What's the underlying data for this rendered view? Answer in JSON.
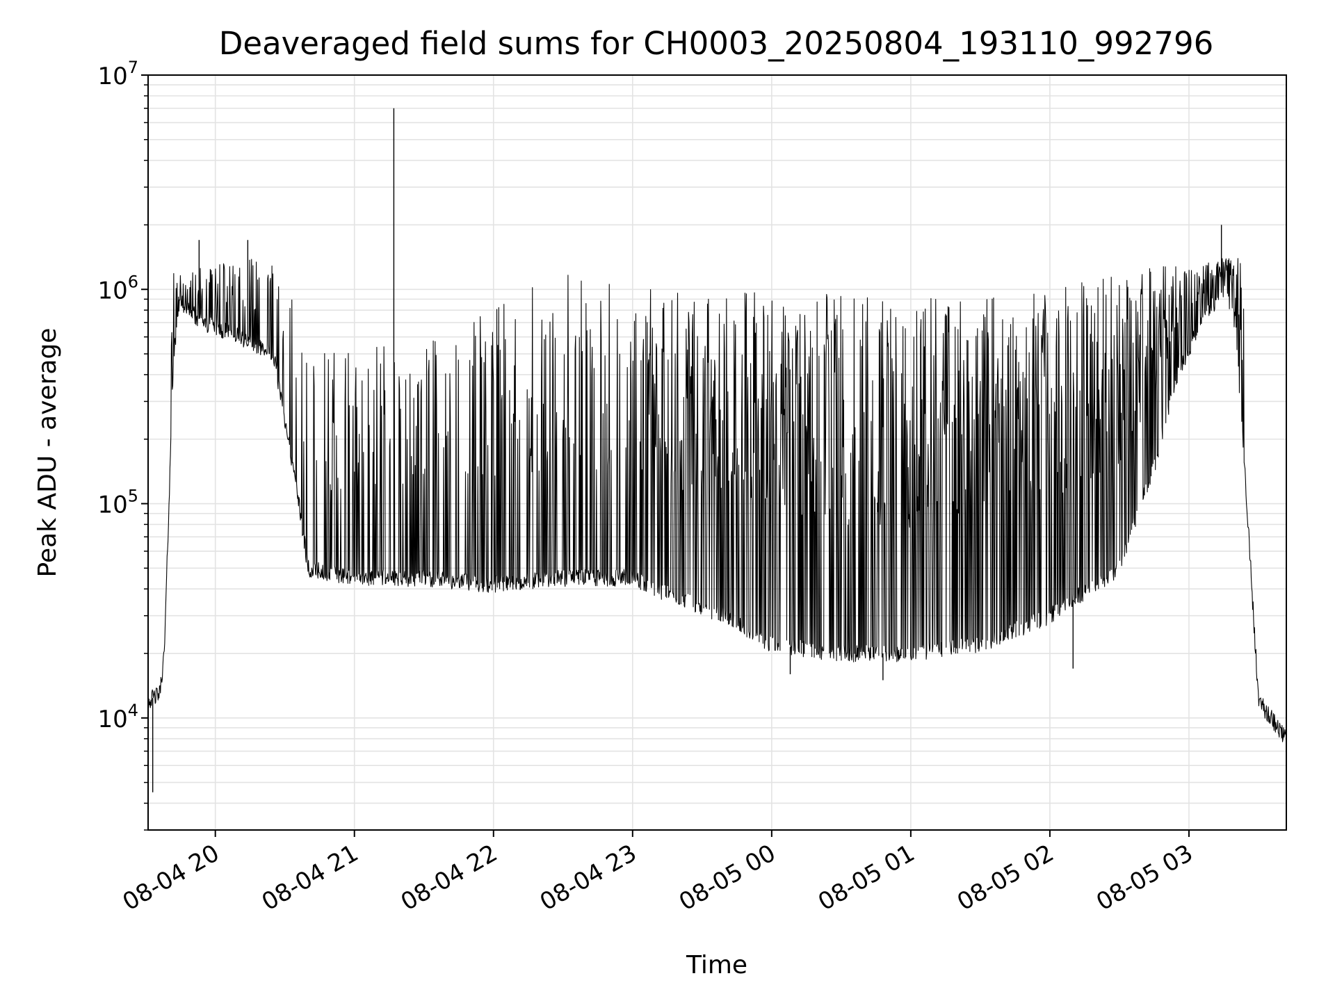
{
  "chart_data": {
    "type": "line",
    "title": "Deaveraged field sums for CH0003_20250804_193110_992796",
    "xlabel": "Time",
    "ylabel": "Peak ADU - average",
    "yscale": "log",
    "ylim": [
      3000,
      10000000
    ],
    "xlim": [
      "2025-08-04 19:31",
      "2025-08-05 03:42"
    ],
    "grid": true,
    "line_color": "#000000",
    "grid_color": "#e3e3e3",
    "x_ticks": [
      {
        "value": "2025-08-04 20:00",
        "label": "08-04 20"
      },
      {
        "value": "2025-08-04 21:00",
        "label": "08-04 21"
      },
      {
        "value": "2025-08-04 22:00",
        "label": "08-04 22"
      },
      {
        "value": "2025-08-04 23:00",
        "label": "08-04 23"
      },
      {
        "value": "2025-08-05 00:00",
        "label": "08-05 00"
      },
      {
        "value": "2025-08-05 01:00",
        "label": "08-05 01"
      },
      {
        "value": "2025-08-05 02:00",
        "label": "08-05 02"
      },
      {
        "value": "2025-08-05 03:00",
        "label": "08-05 03"
      }
    ],
    "y_ticks": [
      {
        "value": 10000,
        "base": "10",
        "exp": "4"
      },
      {
        "value": 100000,
        "base": "10",
        "exp": "5"
      },
      {
        "value": 1000000,
        "base": "10",
        "exp": "6"
      },
      {
        "value": 10000000,
        "base": "10",
        "exp": "7"
      }
    ],
    "series": [
      {
        "baseline": [
          [
            "2025-08-04 19:31",
            12000
          ],
          [
            "2025-08-04 19:36",
            13000
          ],
          [
            "2025-08-04 19:38",
            20000
          ],
          [
            "2025-08-04 19:40",
            100000
          ],
          [
            "2025-08-04 19:42",
            500000
          ],
          [
            "2025-08-04 19:45",
            900000
          ],
          [
            "2025-08-04 19:48",
            800000
          ],
          [
            "2025-08-04 19:55",
            700000
          ],
          [
            "2025-08-04 20:10",
            600000
          ],
          [
            "2025-08-04 20:25",
            500000
          ],
          [
            "2025-08-04 20:35",
            120000
          ],
          [
            "2025-08-04 20:40",
            50000
          ],
          [
            "2025-08-04 21:00",
            45000
          ],
          [
            "2025-08-04 21:30",
            45000
          ],
          [
            "2025-08-04 22:00",
            42000
          ],
          [
            "2025-08-04 22:30",
            45000
          ],
          [
            "2025-08-04 23:00",
            45000
          ],
          [
            "2025-08-04 23:15",
            38000
          ],
          [
            "2025-08-04 23:40",
            30000
          ],
          [
            "2025-08-05 00:00",
            22000
          ],
          [
            "2025-08-05 00:30",
            20000
          ],
          [
            "2025-08-05 01:00",
            20000
          ],
          [
            "2025-08-05 01:30",
            22000
          ],
          [
            "2025-08-05 02:00",
            30000
          ],
          [
            "2025-08-05 02:30",
            50000
          ],
          [
            "2025-08-05 02:45",
            150000
          ],
          [
            "2025-08-05 02:55",
            400000
          ],
          [
            "2025-08-05 03:05",
            700000
          ],
          [
            "2025-08-05 03:15",
            1000000
          ],
          [
            "2025-08-05 03:20",
            700000
          ],
          [
            "2025-08-05 03:25",
            100000
          ],
          [
            "2025-08-05 03:30",
            12000
          ],
          [
            "2025-08-05 03:42",
            8000
          ]
        ],
        "upper_envelope": [
          [
            "2025-08-04 19:45",
            1200000
          ],
          [
            "2025-08-04 20:10",
            1500000
          ],
          [
            "2025-08-04 20:30",
            1400000
          ],
          [
            "2025-08-04 20:40",
            500000
          ],
          [
            "2025-08-04 21:30",
            600000
          ],
          [
            "2025-08-04 22:30",
            1200000
          ],
          [
            "2025-08-04 23:10",
            1000000
          ],
          [
            "2025-08-05 00:00",
            1000000
          ],
          [
            "2025-08-05 01:00",
            900000
          ],
          [
            "2025-08-05 02:00",
            1000000
          ],
          [
            "2025-08-05 02:50",
            1300000
          ],
          [
            "2025-08-05 03:15",
            1400000
          ]
        ],
        "peaks": [
          [
            "2025-08-04 21:17",
            7000000
          ],
          [
            "2025-08-05 03:14",
            2000000
          ],
          [
            "2025-08-04 19:53",
            1700000
          ],
          [
            "2025-08-04 20:14",
            1700000
          ]
        ],
        "dips": [
          [
            "2025-08-04 19:33",
            4500
          ],
          [
            "2025-08-05 00:08",
            16000
          ],
          [
            "2025-08-05 00:48",
            15000
          ],
          [
            "2025-08-05 02:10",
            17000
          ]
        ]
      }
    ]
  }
}
